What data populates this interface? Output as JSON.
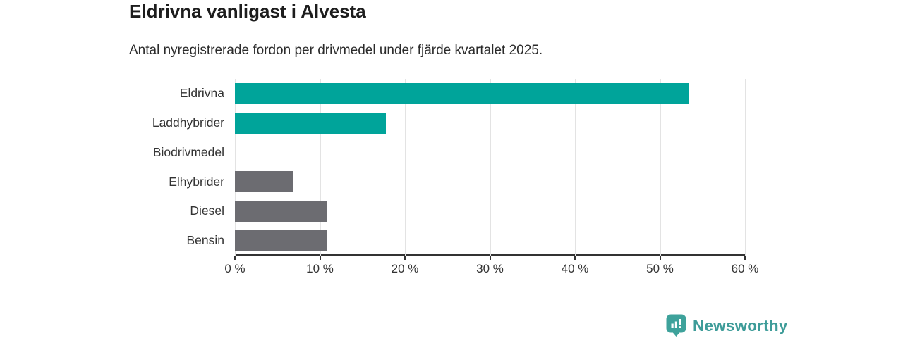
{
  "header": {
    "title": "Eldrivna vanligast i Alvesta",
    "subtitle": "Antal nyregistrerade fordon per drivmedel under fjärde kvartalet 2025."
  },
  "chart_data": {
    "type": "bar",
    "orientation": "horizontal",
    "title": "Eldrivna vanligast i Alvesta",
    "subtitle": "Antal nyregistrerade fordon per drivmedel under fjärde kvartalet 2025.",
    "categories": [
      "Eldrivna",
      "Laddhybrider",
      "Biodrivmedel",
      "Elhybrider",
      "Diesel",
      "Bensin"
    ],
    "values": [
      53.4,
      17.8,
      0,
      6.8,
      10.9,
      10.9
    ],
    "bar_colors": [
      "#00a49a",
      "#00a49a",
      "#6c6c71",
      "#6c6c71",
      "#6c6c71",
      "#6c6c71"
    ],
    "xlabel": "",
    "ylabel": "",
    "xlim": [
      0,
      60
    ],
    "x_ticks": [
      0,
      10,
      20,
      30,
      40,
      50,
      60
    ],
    "x_tick_labels": [
      "0 %",
      "10 %",
      "20 %",
      "30 %",
      "40 %",
      "50 %",
      "60 %"
    ],
    "grid": "vertical-gridlines-on",
    "legend": "none"
  },
  "colors": {
    "highlight_bar": "#00a49a",
    "muted_bar": "#6c6c71",
    "axis": "#333333",
    "gridline": "#e3e3e3",
    "brand_teal": "#3ea29b"
  },
  "footer": {
    "brand": "Newsworthy"
  }
}
